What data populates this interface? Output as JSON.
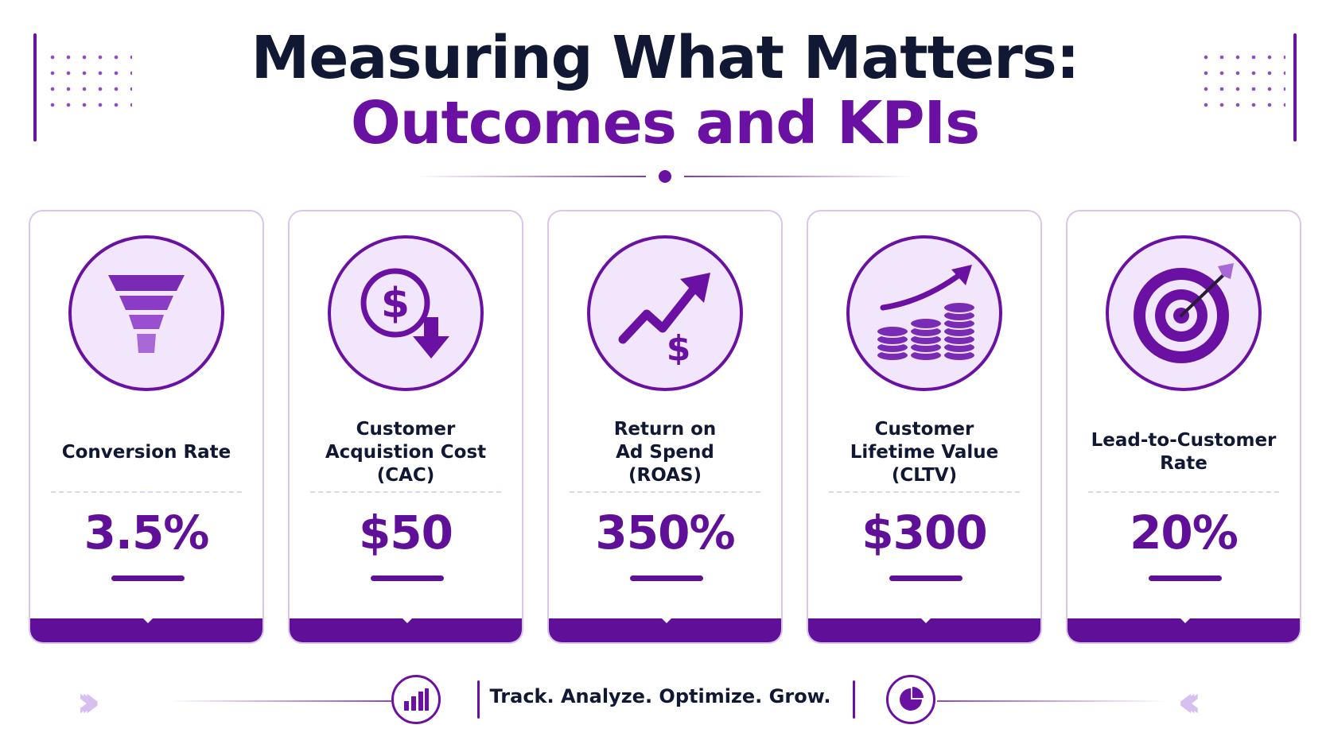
{
  "title": {
    "line1": "Measuring What Matters:",
    "line2": "Outcomes and KPIs"
  },
  "colors": {
    "accent": "#6a11a3",
    "value": "#5f0f98",
    "icon_fill": "#7a2bb5",
    "icon_bg": "#f1e6fb",
    "text": "#111833"
  },
  "kpis": [
    {
      "label": "Conversion Rate",
      "value": "3.5%",
      "icon": "funnel-icon"
    },
    {
      "label": "Customer\nAcquistion Cost\n(CAC)",
      "value": "$50",
      "icon": "dollar-down-icon"
    },
    {
      "label": "Return on\nAd Spend\n(ROAS)",
      "value": "350%",
      "icon": "trend-up-dollar-icon"
    },
    {
      "label": "Customer\nLifetime Value\n(CLTV)",
      "value": "$300",
      "icon": "coins-growth-icon"
    },
    {
      "label": "Lead-to-Customer\nRate",
      "value": "20%",
      "icon": "target-icon"
    }
  ],
  "footer": {
    "tagline": "Track. Analyze. Optimize. Grow.",
    "left_icon": "bar-chart-icon",
    "right_icon": "pie-chart-icon"
  }
}
